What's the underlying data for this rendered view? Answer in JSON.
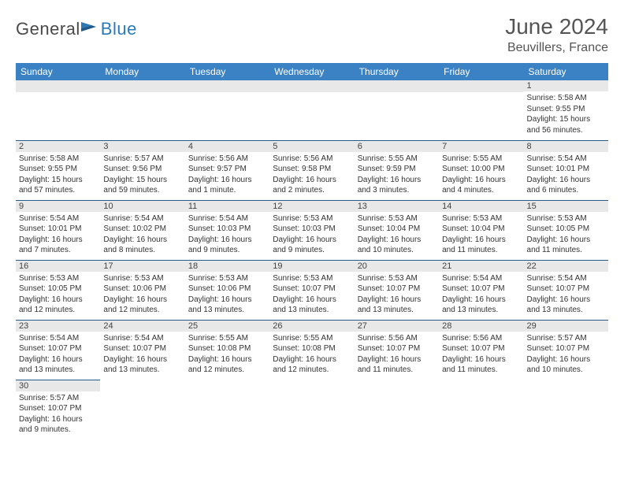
{
  "logo": {
    "part1": "General",
    "part2": "Blue"
  },
  "title": "June 2024",
  "location": "Beuvillers, France",
  "columns": [
    "Sunday",
    "Monday",
    "Tuesday",
    "Wednesday",
    "Thursday",
    "Friday",
    "Saturday"
  ],
  "colors": {
    "header_bg": "#3b82c4",
    "header_text": "#ffffff",
    "daynum_bg": "#e8e8e8",
    "border": "#2a5a8a",
    "logo_gray": "#4a4a4a",
    "logo_blue": "#2a7ab8"
  },
  "weeks": [
    [
      null,
      null,
      null,
      null,
      null,
      null,
      {
        "n": "1",
        "sr": "Sunrise: 5:58 AM",
        "ss": "Sunset: 9:55 PM",
        "dl": "Daylight: 15 hours and 56 minutes."
      }
    ],
    [
      {
        "n": "2",
        "sr": "Sunrise: 5:58 AM",
        "ss": "Sunset: 9:55 PM",
        "dl": "Daylight: 15 hours and 57 minutes."
      },
      {
        "n": "3",
        "sr": "Sunrise: 5:57 AM",
        "ss": "Sunset: 9:56 PM",
        "dl": "Daylight: 15 hours and 59 minutes."
      },
      {
        "n": "4",
        "sr": "Sunrise: 5:56 AM",
        "ss": "Sunset: 9:57 PM",
        "dl": "Daylight: 16 hours and 1 minute."
      },
      {
        "n": "5",
        "sr": "Sunrise: 5:56 AM",
        "ss": "Sunset: 9:58 PM",
        "dl": "Daylight: 16 hours and 2 minutes."
      },
      {
        "n": "6",
        "sr": "Sunrise: 5:55 AM",
        "ss": "Sunset: 9:59 PM",
        "dl": "Daylight: 16 hours and 3 minutes."
      },
      {
        "n": "7",
        "sr": "Sunrise: 5:55 AM",
        "ss": "Sunset: 10:00 PM",
        "dl": "Daylight: 16 hours and 4 minutes."
      },
      {
        "n": "8",
        "sr": "Sunrise: 5:54 AM",
        "ss": "Sunset: 10:01 PM",
        "dl": "Daylight: 16 hours and 6 minutes."
      }
    ],
    [
      {
        "n": "9",
        "sr": "Sunrise: 5:54 AM",
        "ss": "Sunset: 10:01 PM",
        "dl": "Daylight: 16 hours and 7 minutes."
      },
      {
        "n": "10",
        "sr": "Sunrise: 5:54 AM",
        "ss": "Sunset: 10:02 PM",
        "dl": "Daylight: 16 hours and 8 minutes."
      },
      {
        "n": "11",
        "sr": "Sunrise: 5:54 AM",
        "ss": "Sunset: 10:03 PM",
        "dl": "Daylight: 16 hours and 9 minutes."
      },
      {
        "n": "12",
        "sr": "Sunrise: 5:53 AM",
        "ss": "Sunset: 10:03 PM",
        "dl": "Daylight: 16 hours and 9 minutes."
      },
      {
        "n": "13",
        "sr": "Sunrise: 5:53 AM",
        "ss": "Sunset: 10:04 PM",
        "dl": "Daylight: 16 hours and 10 minutes."
      },
      {
        "n": "14",
        "sr": "Sunrise: 5:53 AM",
        "ss": "Sunset: 10:04 PM",
        "dl": "Daylight: 16 hours and 11 minutes."
      },
      {
        "n": "15",
        "sr": "Sunrise: 5:53 AM",
        "ss": "Sunset: 10:05 PM",
        "dl": "Daylight: 16 hours and 11 minutes."
      }
    ],
    [
      {
        "n": "16",
        "sr": "Sunrise: 5:53 AM",
        "ss": "Sunset: 10:05 PM",
        "dl": "Daylight: 16 hours and 12 minutes."
      },
      {
        "n": "17",
        "sr": "Sunrise: 5:53 AM",
        "ss": "Sunset: 10:06 PM",
        "dl": "Daylight: 16 hours and 12 minutes."
      },
      {
        "n": "18",
        "sr": "Sunrise: 5:53 AM",
        "ss": "Sunset: 10:06 PM",
        "dl": "Daylight: 16 hours and 13 minutes."
      },
      {
        "n": "19",
        "sr": "Sunrise: 5:53 AM",
        "ss": "Sunset: 10:07 PM",
        "dl": "Daylight: 16 hours and 13 minutes."
      },
      {
        "n": "20",
        "sr": "Sunrise: 5:53 AM",
        "ss": "Sunset: 10:07 PM",
        "dl": "Daylight: 16 hours and 13 minutes."
      },
      {
        "n": "21",
        "sr": "Sunrise: 5:54 AM",
        "ss": "Sunset: 10:07 PM",
        "dl": "Daylight: 16 hours and 13 minutes."
      },
      {
        "n": "22",
        "sr": "Sunrise: 5:54 AM",
        "ss": "Sunset: 10:07 PM",
        "dl": "Daylight: 16 hours and 13 minutes."
      }
    ],
    [
      {
        "n": "23",
        "sr": "Sunrise: 5:54 AM",
        "ss": "Sunset: 10:07 PM",
        "dl": "Daylight: 16 hours and 13 minutes."
      },
      {
        "n": "24",
        "sr": "Sunrise: 5:54 AM",
        "ss": "Sunset: 10:07 PM",
        "dl": "Daylight: 16 hours and 13 minutes."
      },
      {
        "n": "25",
        "sr": "Sunrise: 5:55 AM",
        "ss": "Sunset: 10:08 PM",
        "dl": "Daylight: 16 hours and 12 minutes."
      },
      {
        "n": "26",
        "sr": "Sunrise: 5:55 AM",
        "ss": "Sunset: 10:08 PM",
        "dl": "Daylight: 16 hours and 12 minutes."
      },
      {
        "n": "27",
        "sr": "Sunrise: 5:56 AM",
        "ss": "Sunset: 10:07 PM",
        "dl": "Daylight: 16 hours and 11 minutes."
      },
      {
        "n": "28",
        "sr": "Sunrise: 5:56 AM",
        "ss": "Sunset: 10:07 PM",
        "dl": "Daylight: 16 hours and 11 minutes."
      },
      {
        "n": "29",
        "sr": "Sunrise: 5:57 AM",
        "ss": "Sunset: 10:07 PM",
        "dl": "Daylight: 16 hours and 10 minutes."
      }
    ],
    [
      {
        "n": "30",
        "sr": "Sunrise: 5:57 AM",
        "ss": "Sunset: 10:07 PM",
        "dl": "Daylight: 16 hours and 9 minutes."
      },
      null,
      null,
      null,
      null,
      null,
      null
    ]
  ]
}
